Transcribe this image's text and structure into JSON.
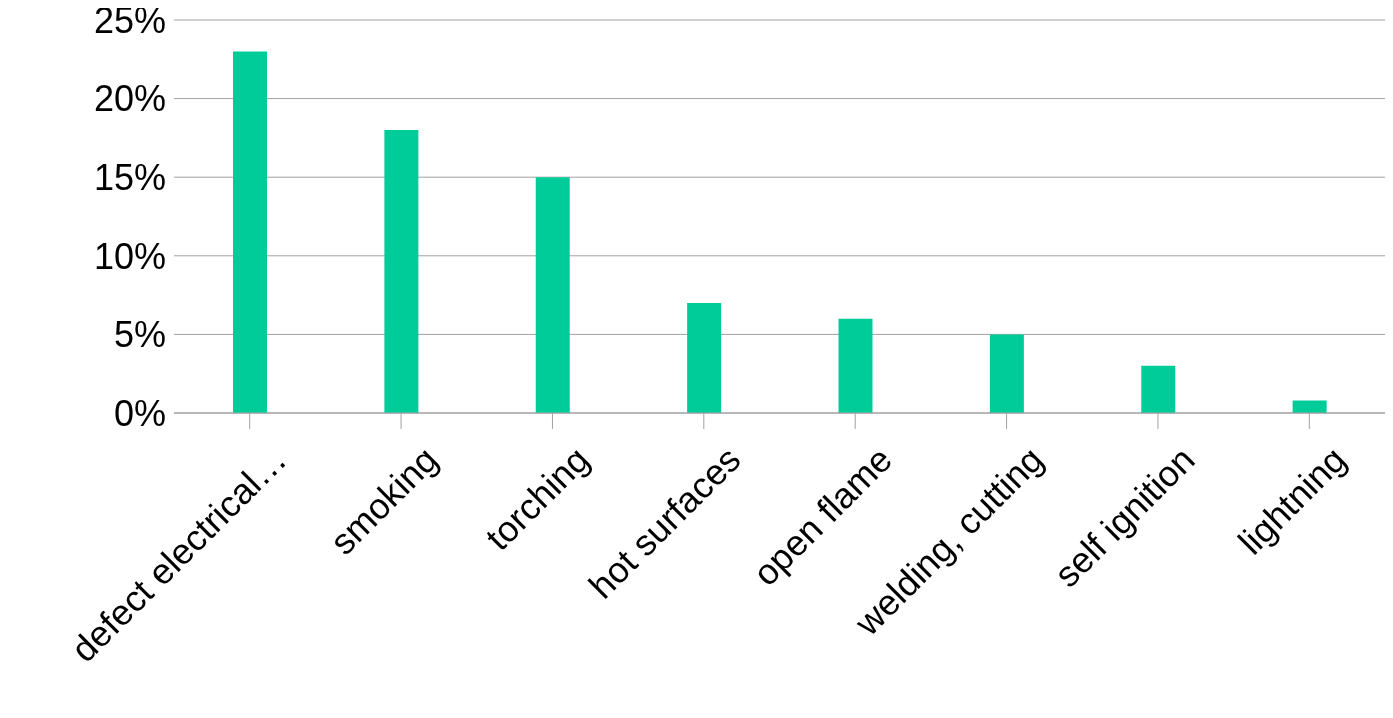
{
  "chart_data": {
    "type": "bar",
    "categories": [
      "defect electrical…",
      "smoking",
      "torching",
      "hot surfaces",
      "open flame",
      "welding, cutting",
      "self ignition",
      "lightning"
    ],
    "values": [
      23,
      18,
      15,
      7,
      6,
      5,
      3,
      0.8
    ],
    "color": "#00cc99",
    "ylim": [
      0,
      25
    ],
    "yticks": [
      {
        "value": 0,
        "label": "0%"
      },
      {
        "value": 5,
        "label": "5%"
      },
      {
        "value": 10,
        "label": "10%"
      },
      {
        "value": 15,
        "label": "15%"
      },
      {
        "value": 20,
        "label": "20%"
      },
      {
        "value": 25,
        "label": "25%"
      }
    ],
    "grid": "y"
  }
}
